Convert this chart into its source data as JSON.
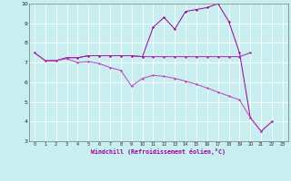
{
  "xlabel": "Windchill (Refroidissement éolien,°C)",
  "x_hours": [
    0,
    1,
    2,
    3,
    4,
    5,
    6,
    7,
    8,
    9,
    10,
    11,
    12,
    13,
    14,
    15,
    16,
    17,
    18,
    19,
    20,
    21,
    22,
    23
  ],
  "line1_y": [
    7.5,
    7.1,
    7.1,
    7.25,
    7.25,
    7.35,
    7.35,
    7.35,
    7.35,
    7.35,
    7.3,
    8.8,
    9.3,
    8.7,
    9.6,
    9.7,
    9.8,
    10.0,
    9.1,
    7.5,
    4.2,
    3.5,
    4.0,
    null
  ],
  "line2_y": [
    7.5,
    7.1,
    7.1,
    7.25,
    7.25,
    7.35,
    7.35,
    7.35,
    7.35,
    7.35,
    7.3,
    7.3,
    7.3,
    7.3,
    7.3,
    7.3,
    7.3,
    7.3,
    7.3,
    7.3,
    7.5,
    null,
    null,
    null
  ],
  "line3_y": [
    7.5,
    7.1,
    7.1,
    7.2,
    7.0,
    7.05,
    6.95,
    6.75,
    6.6,
    5.8,
    6.2,
    6.35,
    6.3,
    6.2,
    6.05,
    5.9,
    5.7,
    5.5,
    5.3,
    5.1,
    4.2,
    3.5,
    4.0,
    null
  ],
  "ylim": [
    3,
    10
  ],
  "xlim": [
    -0.5,
    23.5
  ],
  "yticks": [
    3,
    4,
    5,
    6,
    7,
    8,
    9,
    10
  ],
  "bg_color": "#c8eef0",
  "grid_color": "#ffffff",
  "line_color1": "#990099",
  "line_color2": "#aa22aa",
  "line_color3": "#bb44bb"
}
